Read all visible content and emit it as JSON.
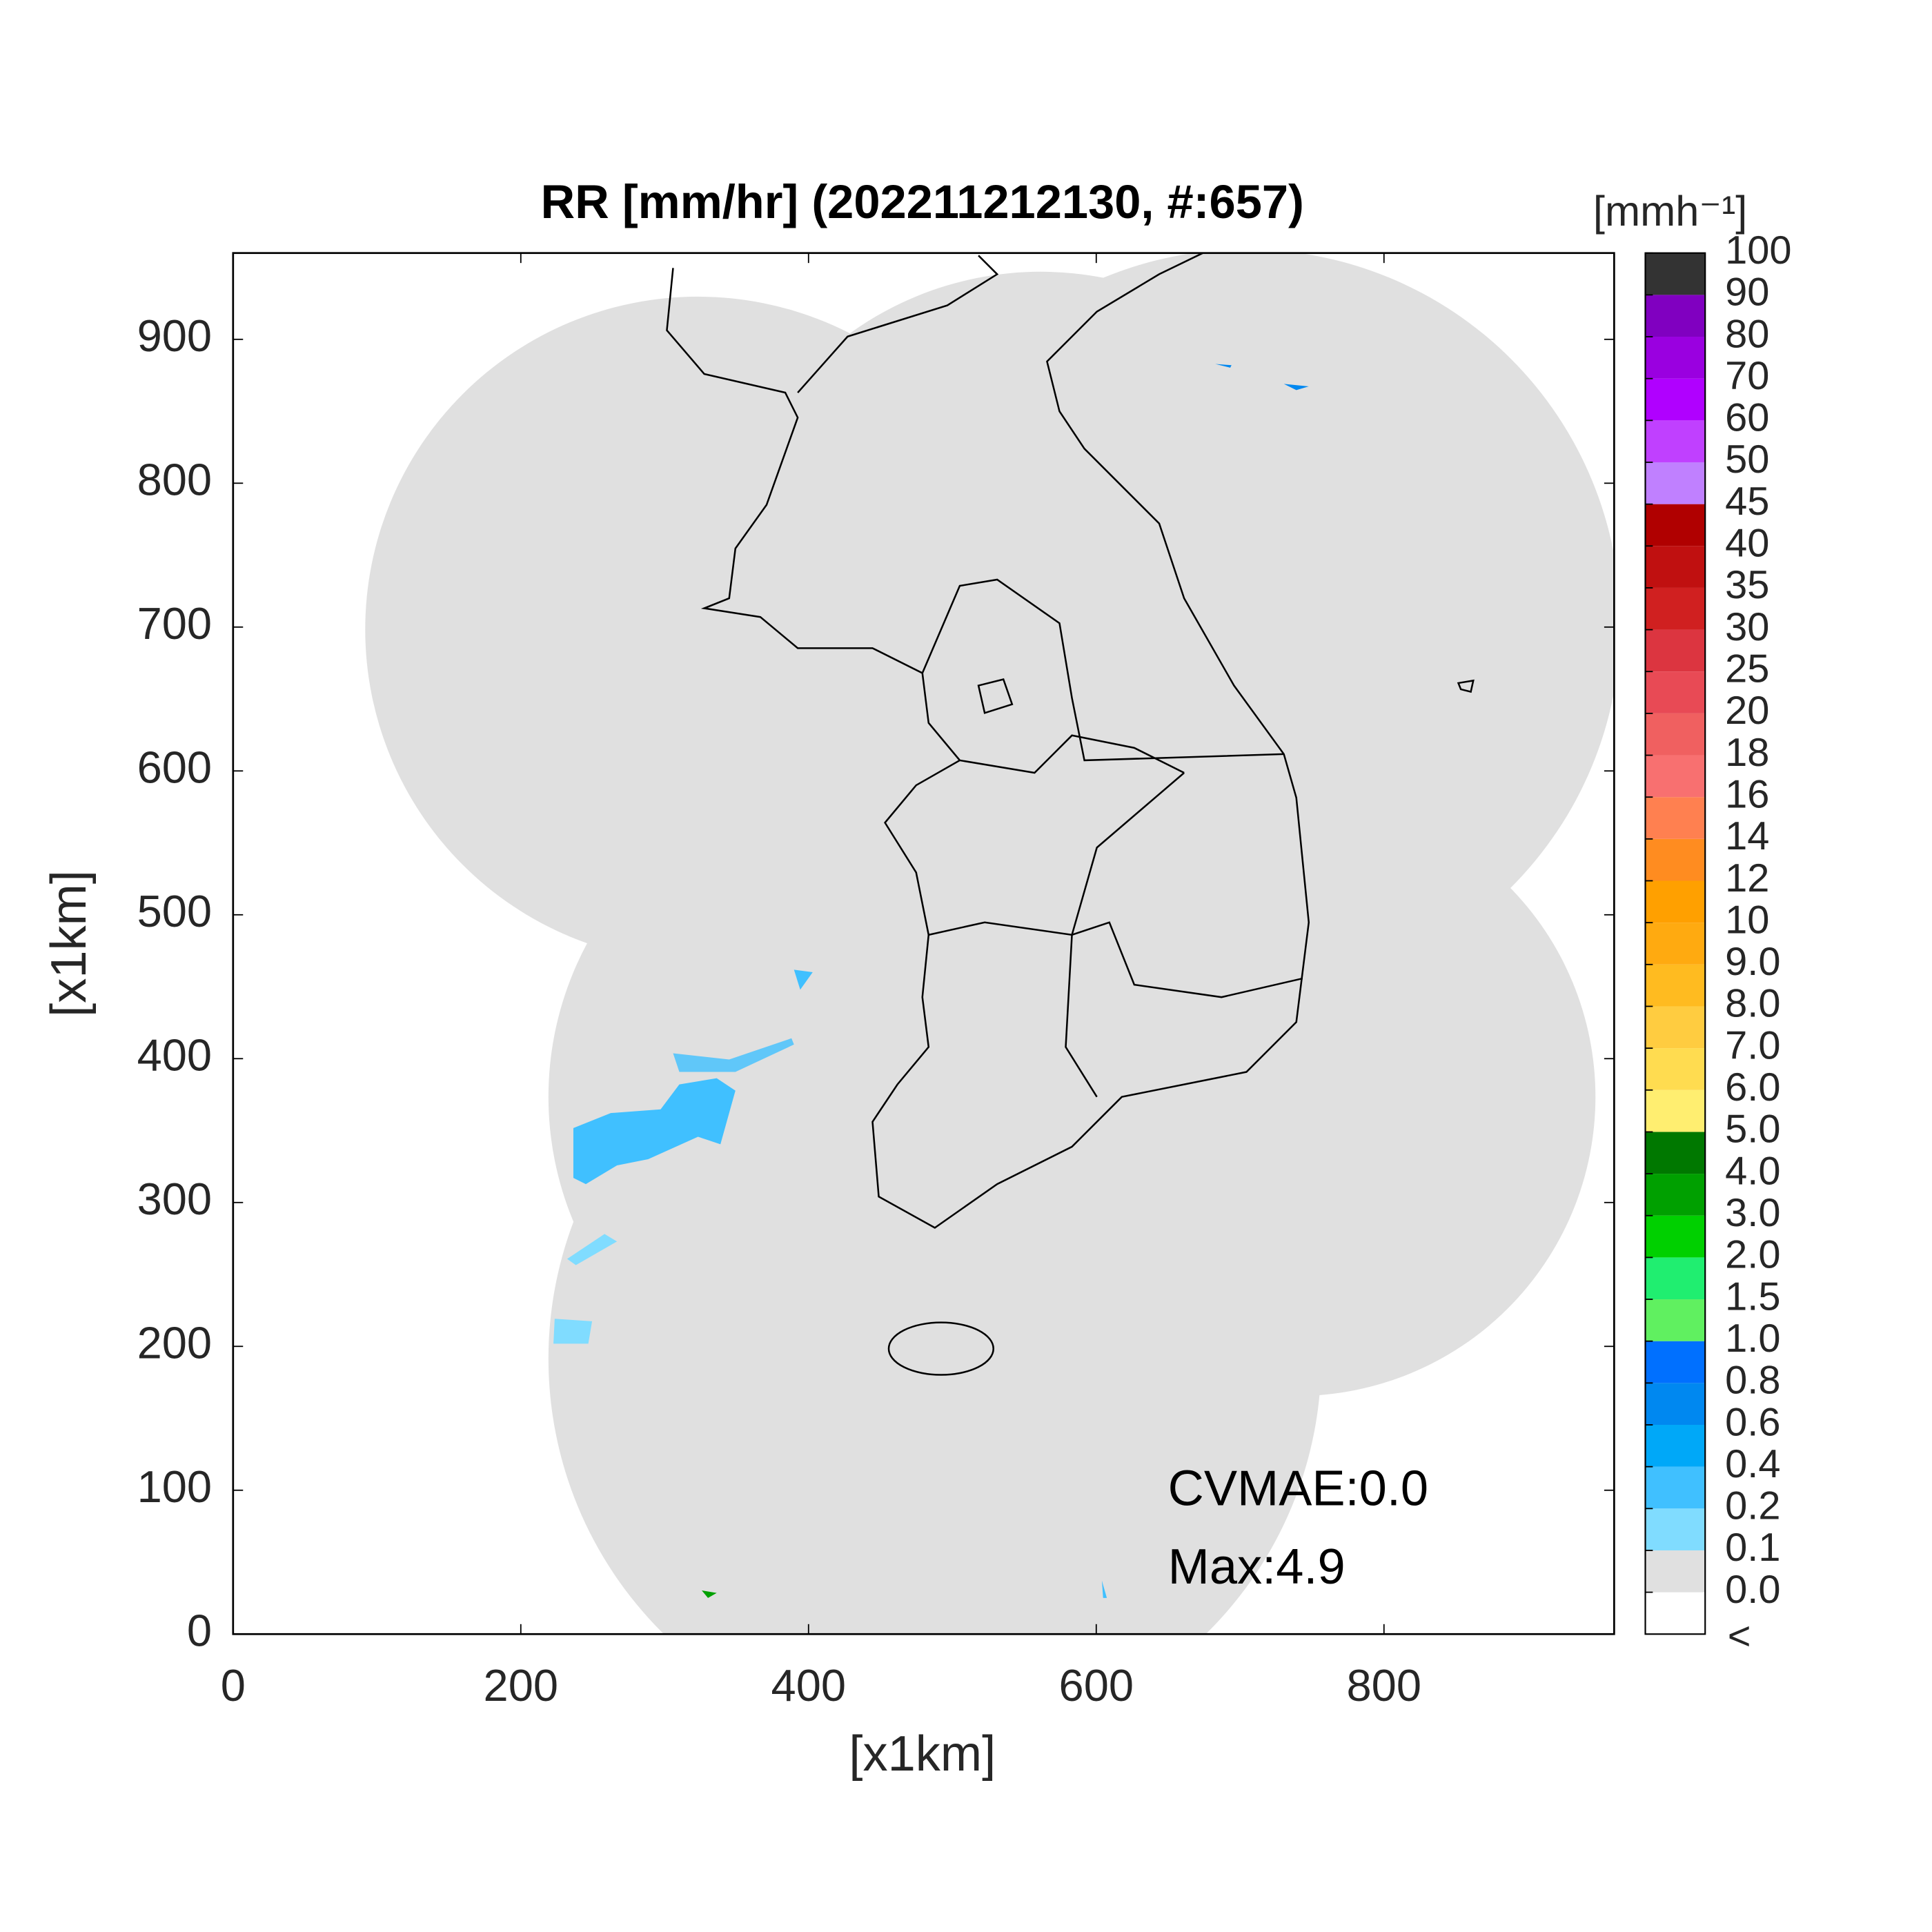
{
  "chart_data": {
    "type": "map",
    "title": "RR [mm/hr] (202211212130, #:657)",
    "xlabel": "[x1km]",
    "ylabel": "[x1km]",
    "xlim": [
      0,
      960
    ],
    "ylim": [
      0,
      960
    ],
    "xticks": [
      0,
      200,
      400,
      600,
      800
    ],
    "yticks": [
      0,
      100,
      200,
      300,
      400,
      500,
      600,
      700,
      800,
      900
    ],
    "annotations": [
      "CVMAE:0.0",
      "Max:4.9"
    ],
    "colorbar": {
      "title": "[mmh⁻¹]",
      "under_label": "<",
      "under_color": "#ffffff",
      "levels": [
        {
          "value": 0,
          "label": "0.0"
        },
        0.1,
        0.2,
        0.4,
        0.6,
        0.8,
        {
          "value": 1,
          "label": "1.0"
        },
        1.5,
        {
          "value": 2,
          "label": "2.0"
        },
        {
          "value": 3,
          "label": "3.0"
        },
        {
          "value": 4,
          "label": "4.0"
        },
        {
          "value": 5,
          "label": "5.0"
        },
        {
          "value": 6,
          "label": "6.0"
        },
        {
          "value": 7,
          "label": "7.0"
        },
        {
          "value": 8,
          "label": "8.0"
        },
        {
          "value": 9,
          "label": "9.0"
        },
        10,
        12,
        14,
        16,
        18,
        20,
        25,
        30,
        35,
        40,
        45,
        50,
        60,
        70,
        80,
        90,
        100
      ],
      "colors": [
        "#e0e0e0",
        "#80dcff",
        "#40c0ff",
        "#00a8f8",
        "#0088f0",
        "#0070ff",
        "#60f060",
        "#20ee70",
        "#00d000",
        "#00a000",
        "#007800",
        "#ffee70",
        "#ffdc50",
        "#ffcc40",
        "#ffbb20",
        "#ffaa10",
        "#ffa000",
        "#ff8c20",
        "#ff8050",
        "#f87070",
        "#f06060",
        "#e84a55",
        "#dc3540",
        "#d02020",
        "#c01010",
        "#b00000",
        "#c080ff",
        "#c040ff",
        "#b000ff",
        "#9a00e0",
        "#8000c0",
        "#333333"
      ]
    }
  }
}
